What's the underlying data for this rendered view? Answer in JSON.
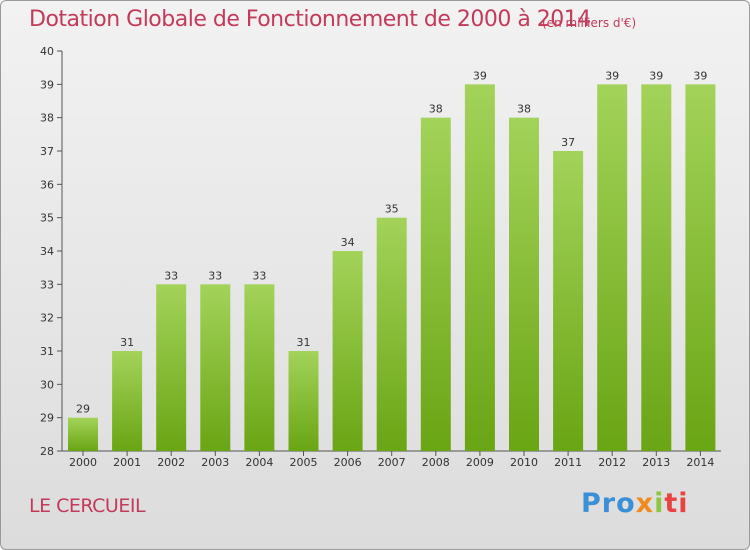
{
  "header": {
    "title": "Dotation Globale de Fonctionnement de 2000 à 2014",
    "unit": "(en milliers d'€)"
  },
  "footer": {
    "commune": "LE CERCUEIL",
    "logo_text": [
      "Pro",
      "x",
      "i",
      "ti"
    ]
  },
  "colors": {
    "title": "#c33a5a",
    "bar_top": "#a3d35a",
    "bar_bottom": "#6aa514",
    "axis": "#555555"
  },
  "chart_data": {
    "type": "bar",
    "categories": [
      "2000",
      "2001",
      "2002",
      "2003",
      "2004",
      "2005",
      "2006",
      "2007",
      "2008",
      "2009",
      "2010",
      "2011",
      "2012",
      "2013",
      "2014"
    ],
    "values": [
      29,
      31,
      33,
      33,
      33,
      31,
      34,
      35,
      38,
      39,
      38,
      37,
      39,
      39,
      39
    ],
    "ylim": [
      28,
      40
    ],
    "yticks": [
      28,
      29,
      30,
      31,
      32,
      33,
      34,
      35,
      36,
      37,
      38,
      39,
      40
    ],
    "grid": false,
    "data_labels": true
  }
}
